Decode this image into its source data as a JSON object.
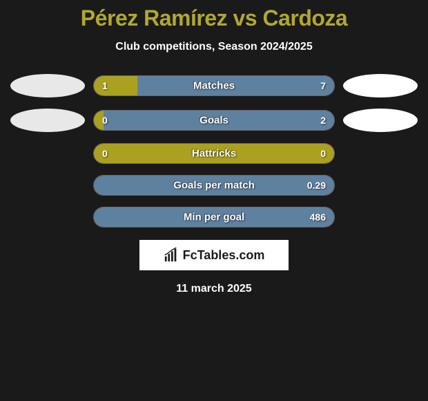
{
  "title": "Pérez Ramírez vs Cardoza",
  "title_color": "#b0a82f",
  "subtitle": "Club competitions, Season 2024/2025",
  "background_color": "#1a1a1a",
  "bar_color_left": "#aba120",
  "bar_color_right": "#5f81a0",
  "bar_border": "rgba(255,255,255,0.35)",
  "rows": [
    {
      "label": "Matches",
      "left_val": "1",
      "right_val": "7",
      "left_pct": 18,
      "right_pct": 82,
      "has_ellipses": true,
      "ellipse_left_color": "#e8e8e8",
      "ellipse_right_color": "#ffffff"
    },
    {
      "label": "Goals",
      "left_val": "0",
      "right_val": "2",
      "left_pct": 4,
      "right_pct": 96,
      "has_ellipses": true,
      "ellipse_left_color": "#e8e8e8",
      "ellipse_right_color": "#ffffff"
    },
    {
      "label": "Hattricks",
      "left_val": "0",
      "right_val": "0",
      "left_pct": 100,
      "right_pct": 0,
      "has_ellipses": false
    },
    {
      "label": "Goals per match",
      "left_val": "",
      "right_val": "0.29",
      "left_pct": 0,
      "right_pct": 100,
      "has_ellipses": false
    },
    {
      "label": "Min per goal",
      "left_val": "",
      "right_val": "486",
      "left_pct": 0,
      "right_pct": 100,
      "has_ellipses": false
    }
  ],
  "logo_text": "FcTables.com",
  "date_text": "11 march 2025"
}
